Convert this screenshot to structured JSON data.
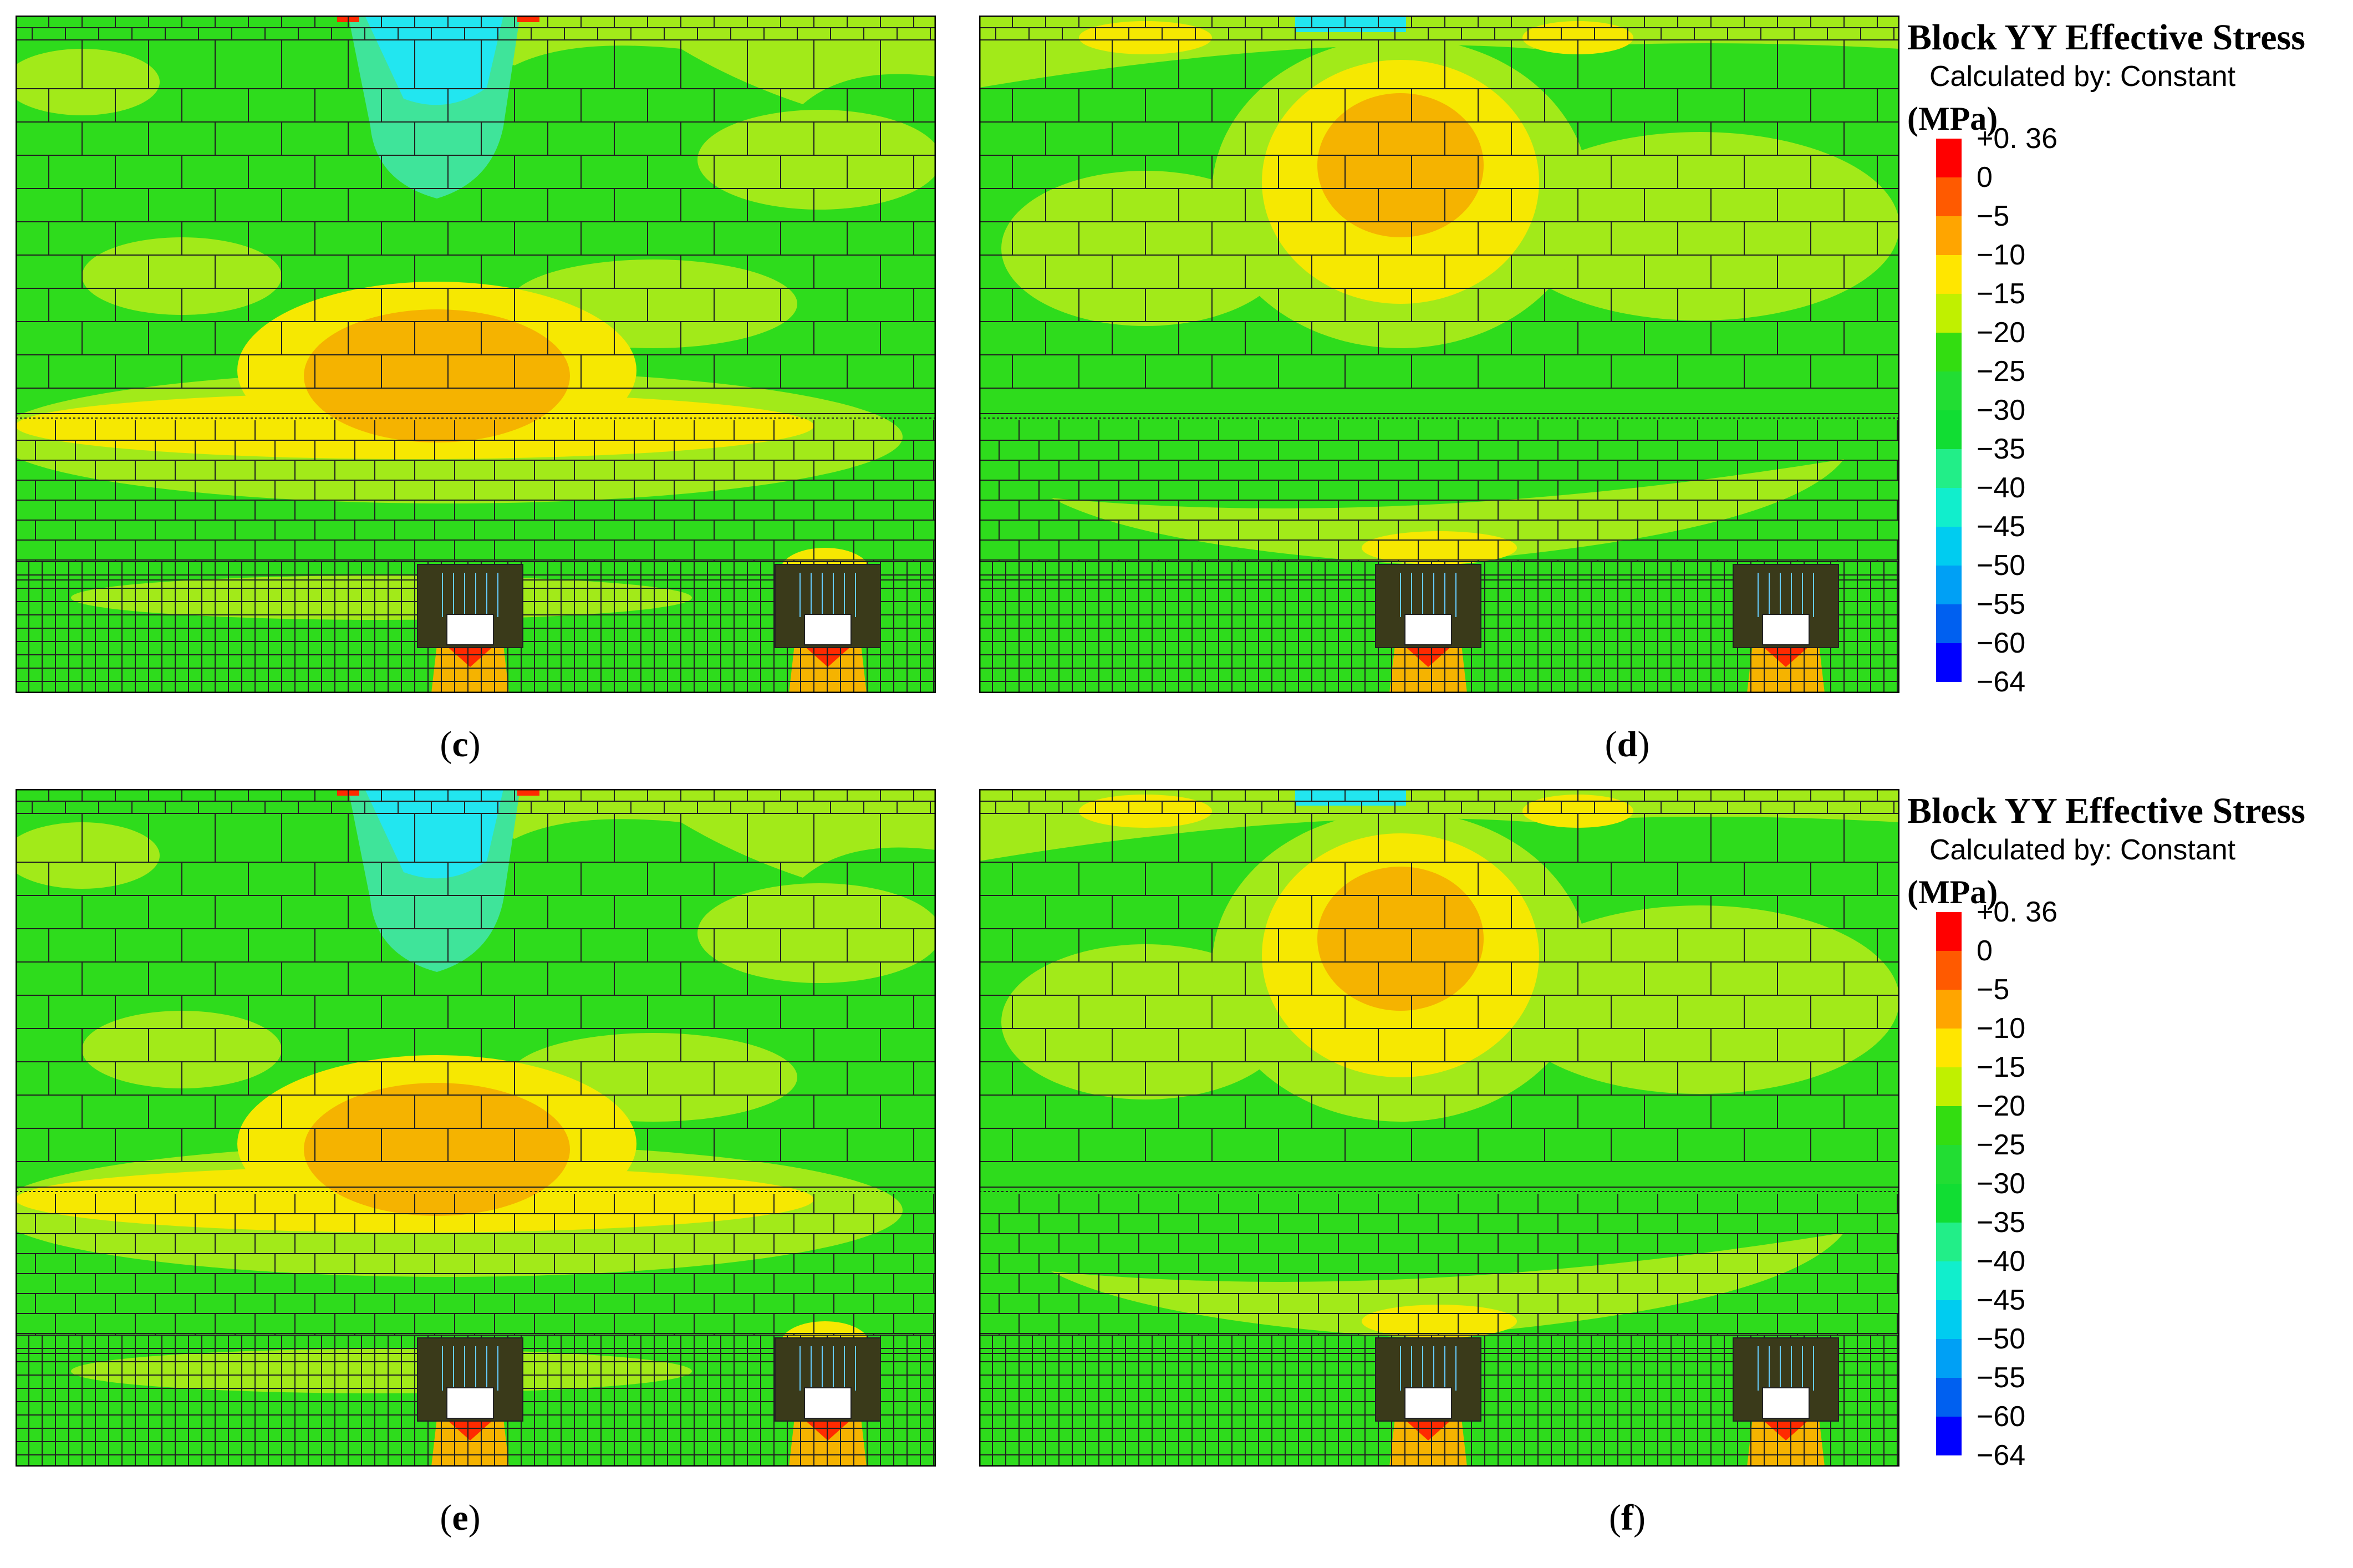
{
  "panels": [
    {
      "id": "c",
      "label": "c",
      "paren_open": "(",
      "paren_close": ")",
      "variant": "left"
    },
    {
      "id": "d",
      "label": "d",
      "paren_open": "(",
      "paren_close": ")",
      "variant": "right"
    },
    {
      "id": "e",
      "label": "e",
      "paren_open": "(",
      "paren_close": ")",
      "variant": "left"
    },
    {
      "id": "f",
      "label": "f",
      "paren_open": "(",
      "paren_close": ")",
      "variant": "right"
    }
  ],
  "legend": {
    "title": "Block YY Effective Stress",
    "calculated_by": "Calculated by: Constant",
    "unit": "(MPa)",
    "labels": [
      "+0. 36",
      "0",
      "−5",
      "−10",
      "−15",
      "−20",
      "−25",
      "−30",
      "−35",
      "−40",
      "−45",
      "−50",
      "−55",
      "−60",
      "−64"
    ],
    "colors": [
      "#ff0000",
      "#ff5a00",
      "#ffa500",
      "#ffe600",
      "#c0f000",
      "#33dd11",
      "#22dd33",
      "#11dd33",
      "#22ee88",
      "#11eecc",
      "#00ccf0",
      "#00a0f5",
      "#0060f0",
      "#0000ff"
    ]
  },
  "colors": {
    "green": "#2edc1c",
    "light_green": "#a2ea19",
    "yellow": "#f6e801",
    "orange": "#f5b300",
    "red": "#ff2a00",
    "cyan": "#22e6f0",
    "teal": "#3fe49a",
    "mesh_line": "#202020",
    "opening": "#ffffff"
  }
}
